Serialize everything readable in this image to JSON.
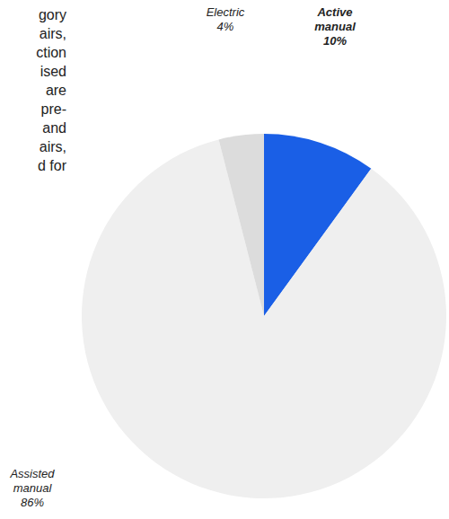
{
  "chart_data": {
    "type": "pie",
    "categories": [
      "Active manual",
      "Assisted manual",
      "Electric"
    ],
    "values": [
      10,
      86,
      4
    ],
    "value_labels": [
      "10%",
      "86%",
      "4%"
    ],
    "colors": [
      "#1a5fe6",
      "#efefef",
      "#dcdcdc"
    ]
  },
  "text_fragments": [
    "gory",
    "airs,",
    "ction",
    "ised",
    "are",
    "pre-",
    "and",
    "airs,",
    "d for"
  ]
}
